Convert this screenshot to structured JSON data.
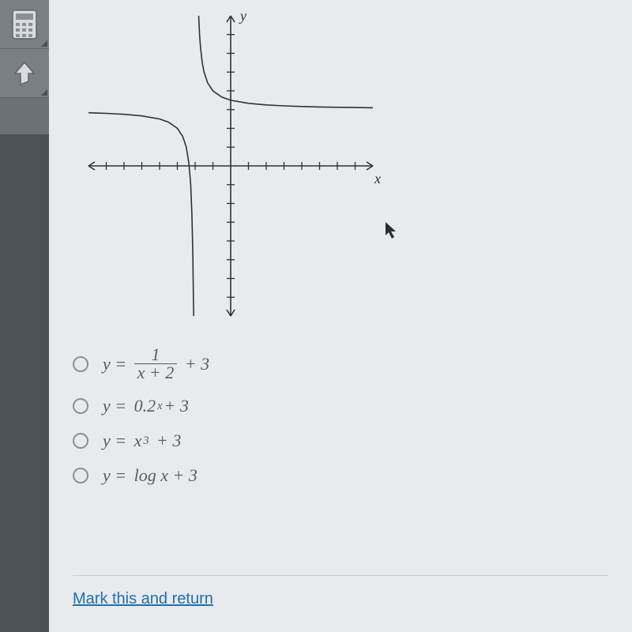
{
  "sidebar": {
    "tools": [
      {
        "name": "calculator-tool",
        "icon": "calculator-icon"
      },
      {
        "name": "hint-tool",
        "icon": "arrow-up-icon"
      }
    ]
  },
  "graph": {
    "type": "line",
    "x_label": "x",
    "y_label": "y",
    "xlim": [
      -8,
      8
    ],
    "ylim": [
      -8,
      8
    ],
    "tick_step": 1,
    "axis_color": "#2d3336",
    "curve_color": "#2d3336",
    "line_width": 1.6,
    "background": "#e8eaec",
    "function_desc": "1/(x+2)+3",
    "vertical_asymptote": -2,
    "horizontal_asymptote": 3,
    "branches": [
      {
        "comment": "left branch x < -2",
        "points": [
          [
            -8,
            2.833
          ],
          [
            -7,
            2.8
          ],
          [
            -6,
            2.75
          ],
          [
            -5,
            2.667
          ],
          [
            -4,
            2.5
          ],
          [
            -3.5,
            2.333
          ],
          [
            -3,
            2.0
          ],
          [
            -2.7,
            1.571
          ],
          [
            -2.5,
            1.0
          ],
          [
            -2.35,
            0.143
          ],
          [
            -2.25,
            -1.0
          ],
          [
            -2.18,
            -2.556
          ],
          [
            -2.13,
            -4.692
          ],
          [
            -2.1,
            -7.0
          ],
          [
            -2.08,
            -8.0
          ]
        ]
      },
      {
        "comment": "right branch x > -2",
        "points": [
          [
            -1.92,
            8.0
          ],
          [
            -1.9,
            13.0
          ],
          [
            -1.87,
            10.69
          ],
          [
            -1.85,
            9.667
          ],
          [
            -1.8,
            8.0
          ],
          [
            -1.75,
            7.0
          ],
          [
            -1.7,
            6.333
          ],
          [
            -1.6,
            5.5
          ],
          [
            -1.5,
            5.0
          ],
          [
            -1.3,
            4.429
          ],
          [
            -1.0,
            4.0
          ],
          [
            -0.5,
            3.667
          ],
          [
            0,
            3.5
          ],
          [
            1,
            3.333
          ],
          [
            2,
            3.25
          ],
          [
            3,
            3.2
          ],
          [
            4,
            3.167
          ],
          [
            5,
            3.143
          ],
          [
            6,
            3.125
          ],
          [
            7,
            3.111
          ],
          [
            8,
            3.1
          ]
        ]
      }
    ]
  },
  "options": [
    {
      "id": "opt-a",
      "lhs": "y =",
      "type": "fraction",
      "numerator": "1",
      "denominator": "x + 2",
      "tail": "+ 3"
    },
    {
      "id": "opt-b",
      "lhs": "y =",
      "type": "exp",
      "base": "0.2",
      "exp": "x",
      "tail": "+ 3"
    },
    {
      "id": "opt-c",
      "lhs": "y =",
      "type": "power",
      "base": "x",
      "exp": "3",
      "tail": "+ 3"
    },
    {
      "id": "opt-d",
      "lhs": "y =",
      "type": "plain",
      "text": "log x + 3"
    }
  ],
  "footer": {
    "link_text": "Mark this and return"
  },
  "cursor": {
    "show": true
  }
}
